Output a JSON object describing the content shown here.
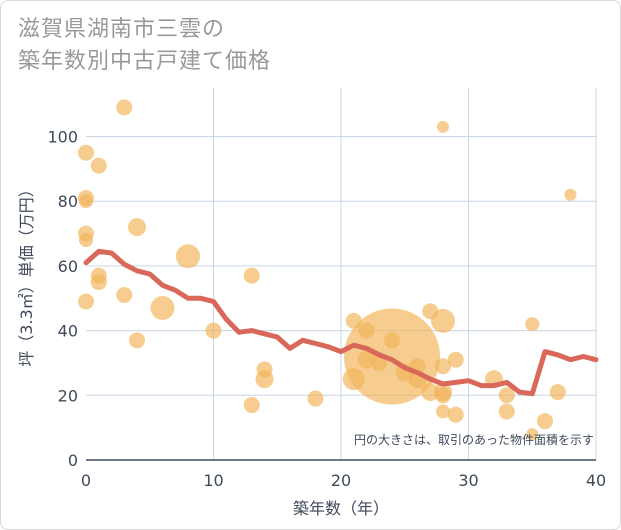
{
  "title_lines": [
    "滋賀県湖南市三雲の",
    "築年数別中古戸建て価格"
  ],
  "chart_data": {
    "type": "scatter",
    "title": "滋賀県湖南市三雲の築年数別中古戸建て価格",
    "xlabel": "築年数（年）",
    "ylabel": "坪（3.3㎡）単価（万円）",
    "xlim": [
      0,
      40
    ],
    "ylim": [
      0,
      115
    ],
    "xticks": [
      0,
      10,
      20,
      30,
      40
    ],
    "yticks": [
      0,
      20,
      40,
      60,
      80,
      100
    ],
    "grid": true,
    "annotation": "円の大きさは、取引のあった物件面積を示す",
    "colors": {
      "bubble": "#f2b45a",
      "line": "#d9685a",
      "grid": "#c8d6e6",
      "text": "#3f4a5a"
    },
    "bubbles": [
      {
        "x": 0,
        "y": 95,
        "size": 8
      },
      {
        "x": 0,
        "y": 81,
        "size": 8
      },
      {
        "x": 0,
        "y": 80,
        "size": 7
      },
      {
        "x": 0,
        "y": 70,
        "size": 8
      },
      {
        "x": 0,
        "y": 68,
        "size": 7
      },
      {
        "x": 0,
        "y": 49,
        "size": 8
      },
      {
        "x": 1,
        "y": 91,
        "size": 8
      },
      {
        "x": 1,
        "y": 57,
        "size": 8
      },
      {
        "x": 1,
        "y": 55,
        "size": 8
      },
      {
        "x": 3,
        "y": 109,
        "size": 8
      },
      {
        "x": 3,
        "y": 51,
        "size": 8
      },
      {
        "x": 4,
        "y": 72,
        "size": 9
      },
      {
        "x": 4,
        "y": 37,
        "size": 8
      },
      {
        "x": 6,
        "y": 47,
        "size": 12
      },
      {
        "x": 8,
        "y": 63,
        "size": 12
      },
      {
        "x": 10,
        "y": 40,
        "size": 8
      },
      {
        "x": 13,
        "y": 57,
        "size": 8
      },
      {
        "x": 13,
        "y": 17,
        "size": 8
      },
      {
        "x": 14,
        "y": 28,
        "size": 8
      },
      {
        "x": 14,
        "y": 25,
        "size": 9
      },
      {
        "x": 18,
        "y": 19,
        "size": 8
      },
      {
        "x": 21,
        "y": 43,
        "size": 8
      },
      {
        "x": 21,
        "y": 25,
        "size": 11
      },
      {
        "x": 22,
        "y": 40,
        "size": 8
      },
      {
        "x": 22,
        "y": 31,
        "size": 9
      },
      {
        "x": 23,
        "y": 30,
        "size": 8
      },
      {
        "x": 24,
        "y": 37,
        "size": 8
      },
      {
        "x": 24,
        "y": 32,
        "size": 48
      },
      {
        "x": 25,
        "y": 27,
        "size": 9
      },
      {
        "x": 26,
        "y": 29,
        "size": 8
      },
      {
        "x": 26,
        "y": 25,
        "size": 9
      },
      {
        "x": 27,
        "y": 46,
        "size": 8
      },
      {
        "x": 27,
        "y": 21,
        "size": 9
      },
      {
        "x": 28,
        "y": 103,
        "size": 6
      },
      {
        "x": 28,
        "y": 43,
        "size": 12
      },
      {
        "x": 28,
        "y": 29,
        "size": 8
      },
      {
        "x": 28,
        "y": 21,
        "size": 9
      },
      {
        "x": 28,
        "y": 20,
        "size": 8
      },
      {
        "x": 28,
        "y": 15,
        "size": 7
      },
      {
        "x": 29,
        "y": 31,
        "size": 8
      },
      {
        "x": 29,
        "y": 14,
        "size": 8
      },
      {
        "x": 32,
        "y": 25,
        "size": 9
      },
      {
        "x": 33,
        "y": 20,
        "size": 8
      },
      {
        "x": 33,
        "y": 15,
        "size": 8
      },
      {
        "x": 35,
        "y": 42,
        "size": 7
      },
      {
        "x": 35,
        "y": 8,
        "size": 6
      },
      {
        "x": 36,
        "y": 12,
        "size": 8
      },
      {
        "x": 37,
        "y": 21,
        "size": 8
      },
      {
        "x": 38,
        "y": 82,
        "size": 6
      }
    ],
    "trend": {
      "x": [
        0,
        1,
        2,
        3,
        4,
        5,
        6,
        7,
        8,
        9,
        10,
        11,
        12,
        13,
        14,
        15,
        16,
        17,
        18,
        19,
        20,
        21,
        22,
        23,
        24,
        25,
        26,
        27,
        28,
        29,
        30,
        31,
        32,
        33,
        34,
        35,
        36,
        37,
        38,
        39,
        40
      ],
      "y": [
        61,
        64.5,
        64,
        60.5,
        58.5,
        57.5,
        54,
        52.5,
        50,
        50,
        49,
        43.5,
        39.5,
        40,
        39,
        38,
        34.5,
        37,
        36,
        35,
        33.5,
        35.5,
        34.5,
        32.5,
        31,
        28.5,
        27,
        25,
        23.5,
        24,
        24.5,
        23,
        23,
        24,
        21,
        20.5,
        33.5,
        32.5,
        31,
        32,
        31
      ]
    }
  }
}
